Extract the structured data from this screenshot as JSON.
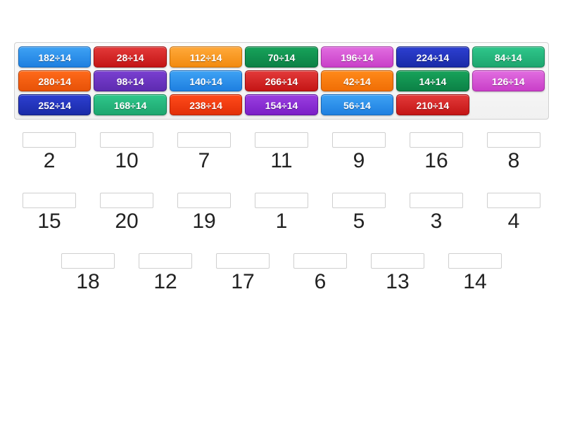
{
  "tiles": [
    {
      "label": "182÷14",
      "bg_top": "#3ea2f4",
      "bg_bottom": "#1e7fe0",
      "border": "#1668b8"
    },
    {
      "label": "28÷14",
      "bg_top": "#e33a3a",
      "bg_bottom": "#c41515",
      "border": "#9a1010"
    },
    {
      "label": "112÷14",
      "bg_top": "#ffa93a",
      "bg_bottom": "#f28a0f",
      "border": "#c76f08"
    },
    {
      "label": "70÷14",
      "bg_top": "#17a35a",
      "bg_bottom": "#0c8146",
      "border": "#086636"
    },
    {
      "label": "196÷14",
      "bg_top": "#e16de0",
      "bg_bottom": "#c93fc8",
      "border": "#a62ea5"
    },
    {
      "label": "224÷14",
      "bg_top": "#2d3fd1",
      "bg_bottom": "#1a2ba8",
      "border": "#131f80"
    },
    {
      "label": "84÷14",
      "bg_top": "#2fc68b",
      "bg_bottom": "#1da66f",
      "border": "#158556"
    },
    {
      "label": "280÷14",
      "bg_top": "#ff6a1a",
      "bg_bottom": "#e75208",
      "border": "#b84005"
    },
    {
      "label": "98÷14",
      "bg_top": "#7a3fd1",
      "bg_bottom": "#5e2bb0",
      "border": "#471f8a"
    },
    {
      "label": "140÷14",
      "bg_top": "#3ea2f4",
      "bg_bottom": "#1e7fe0",
      "border": "#1668b8"
    },
    {
      "label": "266÷14",
      "bg_top": "#e33a3a",
      "bg_bottom": "#c41515",
      "border": "#9a1010"
    },
    {
      "label": "42÷14",
      "bg_top": "#ff8a1a",
      "bg_bottom": "#f06e05",
      "border": "#c25703"
    },
    {
      "label": "14÷14",
      "bg_top": "#17a35a",
      "bg_bottom": "#0c8146",
      "border": "#086636"
    },
    {
      "label": "126÷14",
      "bg_top": "#e16de0",
      "bg_bottom": "#c93fc8",
      "border": "#a62ea5"
    },
    {
      "label": "252÷14",
      "bg_top": "#2d3fd1",
      "bg_bottom": "#1a2ba8",
      "border": "#131f80"
    },
    {
      "label": "168÷14",
      "bg_top": "#2fc68b",
      "bg_bottom": "#1da66f",
      "border": "#158556"
    },
    {
      "label": "238÷14",
      "bg_top": "#ff4a1a",
      "bg_bottom": "#e22f08",
      "border": "#b42305"
    },
    {
      "label": "154÷14",
      "bg_top": "#9a3fe0",
      "bg_bottom": "#7b1fc7",
      "border": "#5f159c"
    },
    {
      "label": "56÷14",
      "bg_top": "#3ea2f4",
      "bg_bottom": "#1e7fe0",
      "border": "#1668b8"
    },
    {
      "label": "210÷14",
      "bg_top": "#e33a3a",
      "bg_bottom": "#c41515",
      "border": "#9a1010"
    }
  ],
  "answers": [
    "2",
    "10",
    "7",
    "11",
    "9",
    "16",
    "8",
    "15",
    "20",
    "19",
    "1",
    "5",
    "3",
    "4",
    "18",
    "12",
    "17",
    "6",
    "13",
    "14"
  ]
}
